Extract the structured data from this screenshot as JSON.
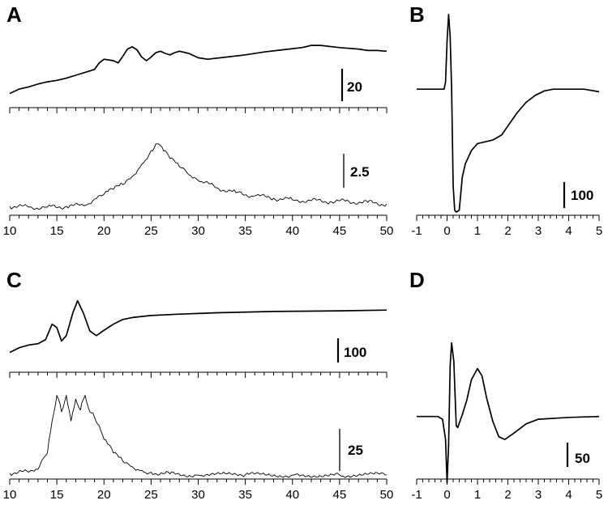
{
  "colors": {
    "background": "#ffffff",
    "ink": "#000000"
  },
  "chart_data": [
    {
      "panel": "A",
      "type": "line",
      "layout_note": "two stacked traces sharing x axis",
      "x_ticks": [
        10,
        15,
        20,
        25,
        30,
        35,
        40,
        45,
        50
      ],
      "xlim": [
        10,
        50
      ],
      "traces": [
        {
          "role": "upper",
          "style": "thick",
          "scale_bar": "20",
          "ylim": [
            0,
            100
          ],
          "points": [
            [
              10,
              5
            ],
            [
              11,
              11
            ],
            [
              12,
              14
            ],
            [
              13,
              18
            ],
            [
              14,
              21
            ],
            [
              15,
              23
            ],
            [
              16,
              26
            ],
            [
              17,
              30
            ],
            [
              18,
              34
            ],
            [
              19,
              38
            ],
            [
              19.5,
              47
            ],
            [
              20,
              52
            ],
            [
              21,
              50
            ],
            [
              21.5,
              47
            ],
            [
              22,
              56
            ],
            [
              22.5,
              66
            ],
            [
              23,
              69
            ],
            [
              23.5,
              65
            ],
            [
              24,
              55
            ],
            [
              24.5,
              50
            ],
            [
              25,
              55
            ],
            [
              25.5,
              61
            ],
            [
              26,
              63
            ],
            [
              26.5,
              60
            ],
            [
              27,
              58
            ],
            [
              27.5,
              61
            ],
            [
              28,
              63
            ],
            [
              29,
              60
            ],
            [
              30,
              54
            ],
            [
              31,
              52
            ],
            [
              33,
              55
            ],
            [
              35,
              58
            ],
            [
              37,
              62
            ],
            [
              39,
              65
            ],
            [
              41,
              68
            ],
            [
              42,
              71
            ],
            [
              43,
              71
            ],
            [
              45,
              68
            ],
            [
              47,
              66
            ],
            [
              48,
              64
            ],
            [
              49,
              64
            ],
            [
              50,
              63
            ]
          ]
        },
        {
          "role": "lower",
          "style": "thin",
          "scale_bar": "2.5",
          "ylim": [
            0,
            100
          ],
          "points": [
            [
              10,
              3
            ],
            [
              12,
              2
            ],
            [
              14,
              2
            ],
            [
              16,
              3
            ],
            [
              18,
              4
            ],
            [
              19,
              12
            ],
            [
              20,
              18
            ],
            [
              21,
              24
            ],
            [
              22,
              30
            ],
            [
              23,
              40
            ],
            [
              24,
              55
            ],
            [
              25,
              72
            ],
            [
              25.5,
              80
            ],
            [
              26,
              78
            ],
            [
              26.5,
              72
            ],
            [
              27,
              62
            ],
            [
              28,
              52
            ],
            [
              29,
              42
            ],
            [
              30,
              35
            ],
            [
              32,
              26
            ],
            [
              34,
              20
            ],
            [
              36,
              16
            ],
            [
              38,
              13
            ],
            [
              40,
              11
            ],
            [
              42,
              10
            ],
            [
              44,
              9
            ],
            [
              46,
              9
            ],
            [
              48,
              8
            ],
            [
              50,
              6
            ]
          ]
        }
      ]
    },
    {
      "panel": "B",
      "type": "line",
      "x_ticks": [
        -1,
        0,
        1,
        2,
        3,
        4,
        5
      ],
      "xlim": [
        -1,
        5
      ],
      "traces": [
        {
          "style": "thick",
          "scale_bar": "100",
          "ylim": [
            -140,
            85
          ],
          "points": [
            [
              -1,
              0
            ],
            [
              -0.1,
              0
            ],
            [
              -0.05,
              8
            ],
            [
              0,
              55
            ],
            [
              0.05,
              85
            ],
            [
              0.1,
              60
            ],
            [
              0.15,
              0
            ],
            [
              0.2,
              -110
            ],
            [
              0.25,
              -138
            ],
            [
              0.3,
              -140
            ],
            [
              0.4,
              -138
            ],
            [
              0.5,
              -100
            ],
            [
              0.6,
              -85
            ],
            [
              0.8,
              -70
            ],
            [
              1,
              -62
            ],
            [
              1.5,
              -58
            ],
            [
              1.8,
              -52
            ],
            [
              2,
              -42
            ],
            [
              2.3,
              -27
            ],
            [
              2.6,
              -15
            ],
            [
              2.9,
              -7
            ],
            [
              3.2,
              -2
            ],
            [
              3.5,
              0
            ],
            [
              4,
              0
            ],
            [
              4.5,
              0
            ],
            [
              5,
              -3
            ]
          ]
        }
      ]
    },
    {
      "panel": "C",
      "type": "line",
      "layout_note": "two stacked traces sharing x axis",
      "x_ticks": [
        10,
        15,
        20,
        25,
        30,
        35,
        40,
        45,
        50
      ],
      "xlim": [
        10,
        50
      ],
      "traces": [
        {
          "role": "upper",
          "style": "thick",
          "scale_bar": "100",
          "ylim": [
            0,
            100
          ],
          "points": [
            [
              10,
              3
            ],
            [
              11,
              10
            ],
            [
              12,
              14
            ],
            [
              13,
              16
            ],
            [
              13.8,
              22
            ],
            [
              14.5,
              45
            ],
            [
              15,
              40
            ],
            [
              15.5,
              20
            ],
            [
              16,
              28
            ],
            [
              16.7,
              62
            ],
            [
              17.2,
              80
            ],
            [
              17.8,
              62
            ],
            [
              18.5,
              35
            ],
            [
              19.2,
              28
            ],
            [
              20,
              36
            ],
            [
              21,
              45
            ],
            [
              22,
              52
            ],
            [
              23,
              55
            ],
            [
              25,
              58
            ],
            [
              28,
              60
            ],
            [
              32,
              62
            ],
            [
              38,
              64
            ],
            [
              45,
              65
            ],
            [
              50,
              66
            ]
          ]
        },
        {
          "role": "lower",
          "style": "thin",
          "scale_bar": "25",
          "ylim": [
            0,
            100
          ],
          "points": [
            [
              10,
              3
            ],
            [
              12,
              4
            ],
            [
              13,
              7
            ],
            [
              14,
              25
            ],
            [
              14.5,
              60
            ],
            [
              15,
              88
            ],
            [
              15.5,
              70
            ],
            [
              16,
              88
            ],
            [
              16.5,
              60
            ],
            [
              17,
              84
            ],
            [
              17.5,
              72
            ],
            [
              18,
              88
            ],
            [
              18.5,
              70
            ],
            [
              19,
              64
            ],
            [
              19.5,
              55
            ],
            [
              20,
              40
            ],
            [
              21,
              25
            ],
            [
              22,
              16
            ],
            [
              23,
              10
            ],
            [
              24,
              6
            ],
            [
              25,
              4
            ],
            [
              27,
              2
            ],
            [
              30,
              1
            ],
            [
              35,
              1
            ],
            [
              40,
              1
            ],
            [
              45,
              1
            ],
            [
              50,
              1
            ]
          ]
        }
      ]
    },
    {
      "panel": "D",
      "type": "line",
      "x_ticks": [
        -1,
        0,
        1,
        2,
        3,
        4,
        5
      ],
      "xlim": [
        -1,
        5
      ],
      "traces": [
        {
          "style": "thick",
          "scale_bar": "50",
          "ylim": [
            -75,
            85
          ],
          "points": [
            [
              -1,
              0
            ],
            [
              -0.3,
              0
            ],
            [
              -0.15,
              -3
            ],
            [
              -0.05,
              -25
            ],
            [
              0,
              -72
            ],
            [
              0.05,
              -30
            ],
            [
              0.1,
              55
            ],
            [
              0.15,
              80
            ],
            [
              0.22,
              60
            ],
            [
              0.3,
              -10
            ],
            [
              0.35,
              -12
            ],
            [
              0.5,
              2
            ],
            [
              0.65,
              18
            ],
            [
              0.8,
              40
            ],
            [
              1,
              52
            ],
            [
              1.15,
              44
            ],
            [
              1.3,
              20
            ],
            [
              1.5,
              -5
            ],
            [
              1.7,
              -22
            ],
            [
              1.9,
              -25
            ],
            [
              2.2,
              -18
            ],
            [
              2.6,
              -8
            ],
            [
              3,
              -3
            ],
            [
              4,
              -1
            ],
            [
              5,
              0
            ]
          ]
        }
      ]
    }
  ]
}
